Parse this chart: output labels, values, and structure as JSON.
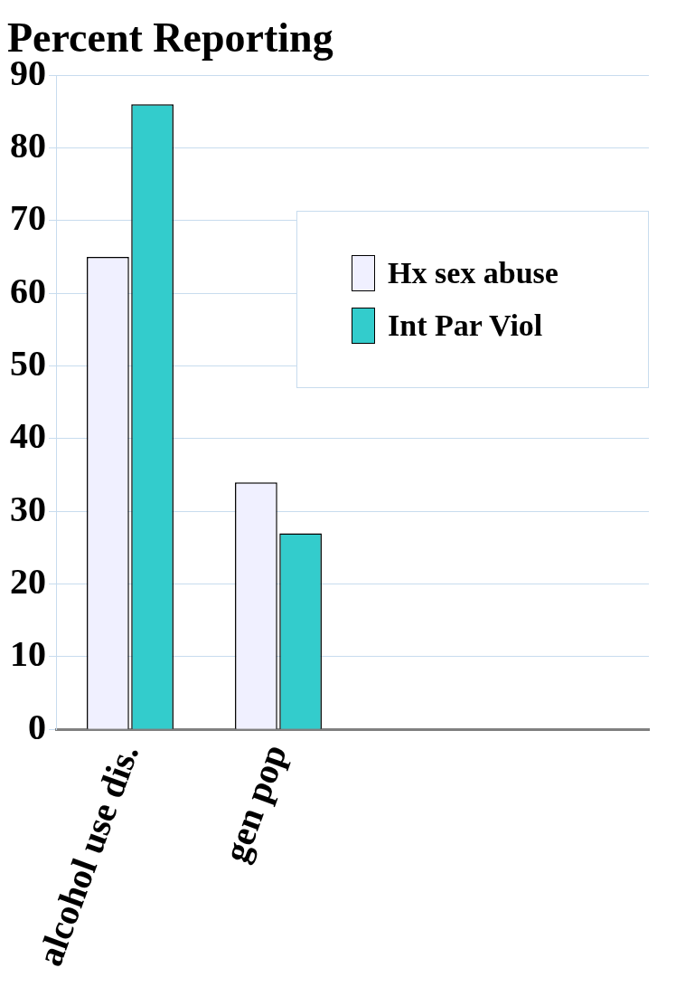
{
  "chart_data": {
    "type": "bar",
    "title": "Percent Reporting",
    "categories": [
      "alcohol use dis.",
      "gen pop",
      null,
      null
    ],
    "series": [
      {
        "name": "Hx sex abuse",
        "color": "#f0f0ff",
        "values": [
          65,
          34,
          null,
          null
        ]
      },
      {
        "name": "Int Par Viol",
        "color": "#33cccc",
        "values": [
          86,
          27,
          null,
          null
        ]
      }
    ],
    "ylim": [
      0,
      90
    ],
    "yticks": [
      0,
      10,
      20,
      30,
      40,
      50,
      60,
      70,
      80,
      90
    ],
    "grid": "y",
    "legend": "right"
  }
}
